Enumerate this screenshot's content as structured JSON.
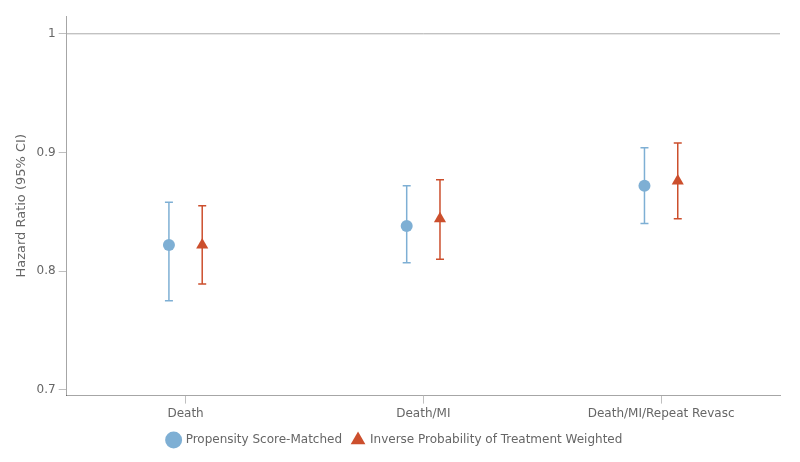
{
  "chart_data": {
    "type": "scatter",
    "ylabel": "Hazard Ratio (95% CI)",
    "categories": [
      "Death",
      "Death/MI",
      "Death/MI/Repeat Revasc"
    ],
    "series": [
      {
        "name": "Propensity Score-Matched",
        "color": "#7eafd4",
        "marker": "circle",
        "values": [
          0.822,
          0.838,
          0.872
        ],
        "ci_lower": [
          0.775,
          0.807,
          0.84
        ],
        "ci_upper": [
          0.858,
          0.872,
          0.904
        ]
      },
      {
        "name": "Inverse Probability of Treatment Weighted",
        "color": "#cc4f2d",
        "marker": "triangle",
        "values": [
          0.822,
          0.844,
          0.876
        ],
        "ci_lower": [
          0.789,
          0.81,
          0.844
        ],
        "ci_upper": [
          0.855,
          0.877,
          0.908
        ]
      }
    ],
    "ylim": [
      0.695,
      1.015
    ],
    "yticks": [
      0.7,
      0.8,
      0.9,
      1
    ],
    "reference_line": 1,
    "grid": false,
    "legend": "bottom"
  }
}
